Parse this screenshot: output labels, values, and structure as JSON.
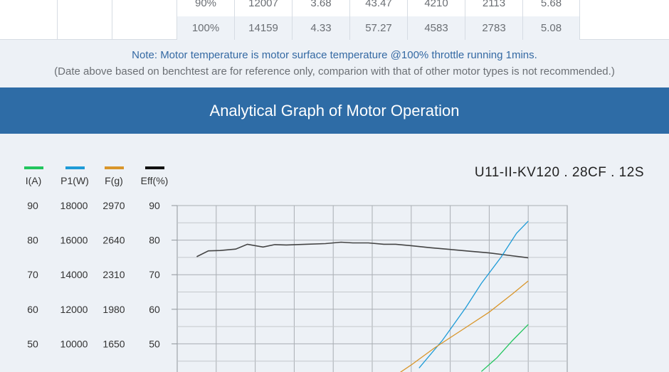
{
  "table": {
    "rows": [
      [
        "90%",
        "12007",
        "3.68",
        "43.47",
        "4210",
        "2113",
        "5.68"
      ],
      [
        "100%",
        "14159",
        "4.33",
        "57.27",
        "4583",
        "2783",
        "5.08"
      ]
    ]
  },
  "note": {
    "line1": "Note: Motor temperature is motor surface temperature @100% throttle running 1mins.",
    "line2": "(Date above based on benchtest are for reference only, comparion with that of other motor types is not recommended.)"
  },
  "banner": {
    "title": "Analytical Graph of Motor Operation"
  },
  "chart_data": {
    "type": "line",
    "title": "U11-II-KV120 . 28CF . 12S",
    "legend": [
      {
        "name": "I(A)",
        "color": "#22c55e"
      },
      {
        "name": "P1(W)",
        "color": "#1e9bd7"
      },
      {
        "name": "F(g)",
        "color": "#d9962b"
      },
      {
        "name": "Eff(%)",
        "color": "#111111"
      }
    ],
    "axes": {
      "I": [
        "90",
        "80",
        "70",
        "60",
        "50"
      ],
      "P1": [
        "18000",
        "16000",
        "14000",
        "12000",
        "10000"
      ],
      "F": [
        "2970",
        "2640",
        "2310",
        "1980",
        "1650"
      ],
      "Eff": [
        "90",
        "80",
        "70",
        "60",
        "50"
      ]
    },
    "ranges": {
      "Eff": [
        0,
        90
      ],
      "I": [
        0,
        90
      ],
      "P1": [
        0,
        18000
      ],
      "F": [
        0,
        2970
      ]
    },
    "x_range": [
      0,
      10
    ],
    "series": [
      {
        "name": "Eff(%)",
        "color": "#444444",
        "x": [
          0.5,
          0.8,
          1.1,
          1.5,
          1.8,
          2.2,
          2.5,
          2.8,
          3.3,
          3.8,
          4.2,
          4.5,
          4.9,
          5.3,
          5.6,
          6.0,
          6.5,
          7.0,
          7.5,
          8.0,
          8.5,
          9.0
        ],
        "y": [
          75.2,
          76.9,
          77.0,
          77.4,
          78.8,
          78.0,
          78.7,
          78.6,
          78.8,
          79.0,
          79.4,
          79.2,
          79.2,
          78.8,
          78.8,
          78.4,
          77.8,
          77.3,
          76.8,
          76.3,
          75.6,
          74.9
        ]
      },
      {
        "name": "P1(W)",
        "color": "#1e9bd7",
        "x": [
          6.2,
          6.8,
          7.4,
          7.8,
          8.3,
          8.7,
          9.0
        ],
        "y": [
          8600,
          10200,
          12100,
          13500,
          15000,
          16400,
          17100
        ]
      },
      {
        "name": "F(g)",
        "color": "#d9962b",
        "x": [
          5.4,
          6.0,
          6.6,
          7.3,
          8.0,
          8.6,
          9.0
        ],
        "y": [
          1298,
          1448,
          1612,
          1782,
          1953,
          2128,
          2250
        ]
      },
      {
        "name": "I(A)",
        "color": "#22c55e",
        "x": [
          7.8,
          8.2,
          8.6,
          9.0
        ],
        "y": [
          42.0,
          46.0,
          51.0,
          55.6
        ]
      }
    ]
  }
}
